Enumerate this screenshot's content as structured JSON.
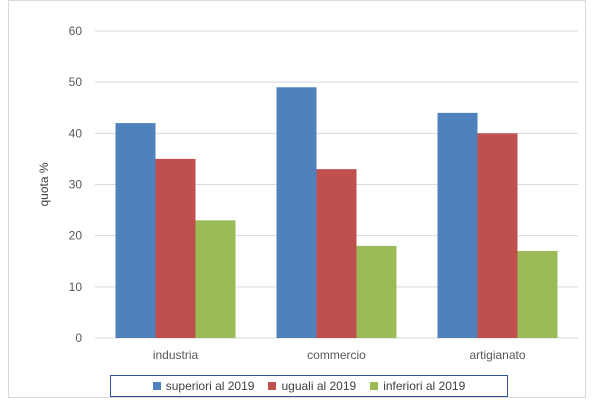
{
  "chart_data": {
    "type": "bar",
    "categories": [
      "industria",
      "commercio",
      "artigianato"
    ],
    "series": [
      {
        "name": "superiori al 2019",
        "values": [
          42,
          49,
          44
        ],
        "color": "#4f81bd"
      },
      {
        "name": "uguali al 2019",
        "values": [
          35,
          33,
          40
        ],
        "color": "#c0504d"
      },
      {
        "name": "inferiori al 2019",
        "values": [
          23,
          18,
          17
        ],
        "color": "#9bbb59"
      }
    ],
    "title": "",
    "xlabel": "",
    "ylabel": "quota %",
    "ylim": [
      0,
      60
    ],
    "yticks": [
      0,
      10,
      20,
      30,
      40,
      50,
      60
    ],
    "grid": true,
    "legend_position": "bottom"
  }
}
